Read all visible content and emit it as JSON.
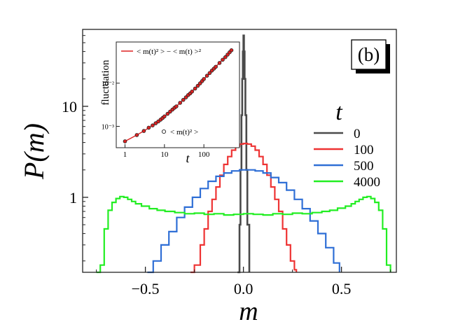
{
  "chart_data": [
    {
      "type": "line",
      "panel_label": "(b)",
      "xlabel": "m",
      "ylabel": "P(m)",
      "xlim": [
        -0.82,
        0.78
      ],
      "ylim": [
        0.15,
        70
      ],
      "yscale": "log",
      "grid": false,
      "xticks": [
        -0.5,
        0.0,
        0.5
      ],
      "xtick_labels": [
        "−0.5",
        "0.0",
        "0.5"
      ],
      "yticks": [
        1,
        10
      ],
      "ytick_labels": [
        "1",
        "10"
      ],
      "legend": {
        "title": "t",
        "placement": "right"
      },
      "series": [
        {
          "name": "0",
          "color": "#4a4a4a",
          "x": [
            -0.03,
            -0.02,
            -0.015,
            -0.01,
            -0.006,
            -0.003,
            0.0,
            0.003,
            0.006,
            0.01,
            0.015,
            0.02,
            0.03
          ],
          "y": [
            0.15,
            0.5,
            2.0,
            8.0,
            20,
            40,
            60,
            40,
            20,
            8.0,
            2.0,
            0.5,
            0.15
          ]
        },
        {
          "name": "100",
          "color": "#ee3333",
          "x": [
            -0.27,
            -0.25,
            -0.22,
            -0.2,
            -0.18,
            -0.16,
            -0.14,
            -0.12,
            -0.1,
            -0.08,
            -0.06,
            -0.04,
            -0.02,
            0.0,
            0.02,
            0.04,
            0.06,
            0.08,
            0.1,
            0.12,
            0.14,
            0.16,
            0.18,
            0.2,
            0.22,
            0.24,
            0.26,
            0.27
          ],
          "y": [
            0.15,
            0.18,
            0.3,
            0.45,
            0.7,
            0.95,
            1.3,
            1.75,
            2.3,
            2.8,
            3.3,
            3.65,
            3.85,
            3.9,
            3.85,
            3.65,
            3.3,
            2.8,
            2.3,
            1.75,
            1.3,
            0.95,
            0.7,
            0.45,
            0.3,
            0.2,
            0.16,
            0.15
          ]
        },
        {
          "name": "500",
          "color": "#2f6fd6",
          "x": [
            -0.49,
            -0.46,
            -0.42,
            -0.38,
            -0.34,
            -0.3,
            -0.26,
            -0.22,
            -0.18,
            -0.14,
            -0.1,
            -0.06,
            -0.02,
            0.02,
            0.06,
            0.1,
            0.14,
            0.18,
            0.22,
            0.26,
            0.3,
            0.34,
            0.38,
            0.42,
            0.46,
            0.49
          ],
          "y": [
            0.15,
            0.2,
            0.3,
            0.42,
            0.6,
            0.78,
            1.0,
            1.25,
            1.5,
            1.7,
            1.85,
            1.95,
            2.0,
            2.0,
            1.95,
            1.85,
            1.65,
            1.45,
            1.2,
            0.95,
            0.75,
            0.55,
            0.4,
            0.28,
            0.19,
            0.15
          ]
        },
        {
          "name": "4000",
          "color": "#22ee22",
          "x": [
            -0.75,
            -0.73,
            -0.71,
            -0.69,
            -0.67,
            -0.65,
            -0.63,
            -0.61,
            -0.59,
            -0.57,
            -0.55,
            -0.52,
            -0.48,
            -0.44,
            -0.4,
            -0.35,
            -0.3,
            -0.25,
            -0.2,
            -0.15,
            -0.1,
            -0.05,
            0.0,
            0.05,
            0.1,
            0.15,
            0.2,
            0.25,
            0.3,
            0.35,
            0.4,
            0.44,
            0.48,
            0.52,
            0.55,
            0.57,
            0.59,
            0.61,
            0.63,
            0.65,
            0.67,
            0.69,
            0.71,
            0.73,
            0.75
          ],
          "y": [
            0.15,
            0.18,
            0.45,
            0.72,
            0.88,
            0.97,
            1.02,
            1.0,
            0.95,
            0.9,
            0.85,
            0.8,
            0.75,
            0.72,
            0.7,
            0.68,
            0.66,
            0.67,
            0.65,
            0.66,
            0.64,
            0.65,
            0.66,
            0.65,
            0.64,
            0.66,
            0.65,
            0.67,
            0.66,
            0.68,
            0.7,
            0.72,
            0.76,
            0.8,
            0.85,
            0.9,
            0.95,
            1.0,
            1.02,
            0.97,
            0.88,
            0.72,
            0.45,
            0.18,
            0.15
          ]
        }
      ]
    },
    {
      "type": "line",
      "inset": true,
      "xlabel": "t",
      "ylabel": "fluctuation",
      "xscale": "log",
      "yscale": "log",
      "xlim": [
        0.6,
        800
      ],
      "ylim": [
        0.00032,
        0.09
      ],
      "xticks": [
        1,
        10,
        100
      ],
      "xtick_labels": [
        "1",
        "10",
        "100"
      ],
      "yticks": [
        0.001,
        0.01
      ],
      "ytick_labels": [
        "10⁻³",
        "10⁻²"
      ],
      "legend": {
        "placement": "top-left and bottom-right"
      },
      "series": [
        {
          "name": "< m(t)² > − < m(t) >²",
          "style": "line",
          "color": "#dd2222",
          "x": [
            1,
            2,
            3,
            5,
            10,
            20,
            50,
            100,
            200,
            500
          ],
          "y": [
            0.00045,
            0.00063,
            0.00078,
            0.00105,
            0.0017,
            0.0029,
            0.0064,
            0.0125,
            0.024,
            0.058
          ]
        },
        {
          "name": "< m(t)² >",
          "style": "markers",
          "color": "#222222",
          "marker_fill": "#dd2222",
          "x": [
            1,
            2,
            3,
            4,
            5,
            6,
            7,
            8,
            9,
            10,
            12,
            14,
            16,
            18,
            20,
            25,
            30,
            35,
            40,
            45,
            50,
            60,
            70,
            80,
            90,
            100,
            120,
            140,
            160,
            180,
            200,
            250,
            300,
            350,
            400,
            450,
            500
          ],
          "y": [
            0.00045,
            0.00063,
            0.00078,
            0.00093,
            0.00105,
            0.00118,
            0.0013,
            0.00143,
            0.00156,
            0.0017,
            0.00195,
            0.0022,
            0.00245,
            0.0027,
            0.0029,
            0.0035,
            0.0041,
            0.0047,
            0.0053,
            0.0058,
            0.0064,
            0.0075,
            0.0087,
            0.0099,
            0.0112,
            0.0125,
            0.0149,
            0.0172,
            0.0196,
            0.0218,
            0.024,
            0.0295,
            0.035,
            0.04,
            0.046,
            0.052,
            0.058
          ]
        }
      ]
    }
  ]
}
